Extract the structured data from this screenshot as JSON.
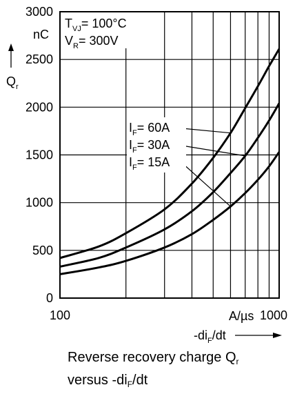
{
  "chart_data": {
    "type": "line",
    "xscale": "log",
    "xlim": [
      100,
      1000
    ],
    "ylim": [
      0,
      3000
    ],
    "grid": true,
    "x": [
      100,
      150,
      200,
      300,
      400,
      500,
      600,
      700,
      800,
      900,
      1000
    ],
    "series": [
      {
        "name": "I_F= 60A",
        "label_main": "I",
        "label_sub": "F",
        "label_rest": "= 60A",
        "values": [
          420,
          540,
          680,
          930,
          1200,
          1470,
          1730,
          1990,
          2220,
          2430,
          2610
        ]
      },
      {
        "name": "I_F= 30A",
        "label_main": "I",
        "label_sub": "F",
        "label_rest": "= 30A",
        "values": [
          330,
          420,
          530,
          720,
          910,
          1110,
          1310,
          1490,
          1680,
          1860,
          2040
        ]
      },
      {
        "name": "I_F= 15A",
        "label_main": "I",
        "label_sub": "F",
        "label_rest": "= 15A",
        "values": [
          250,
          320,
          390,
          530,
          670,
          820,
          960,
          1100,
          1240,
          1380,
          1530
        ]
      }
    ],
    "y_ticks": [
      "3000",
      "2500",
      "2000",
      "1500",
      "1000",
      "500",
      "0"
    ],
    "x_ticks": [
      "100",
      "1000"
    ],
    "ylabel": {
      "main": "Q",
      "sub": "r",
      "unit": "nC"
    },
    "xlabel": {
      "unit": "A/µs",
      "main_pre": "-di",
      "sub": "F",
      "main_post": "/dt"
    },
    "conditions": [
      {
        "main": "T",
        "sub": "VJ",
        "rest": "= 100°C"
      },
      {
        "main": "V",
        "sub": "R",
        "rest": "= 300V"
      }
    ]
  },
  "caption": {
    "line1_main": "Reverse recovery charge Q",
    "line1_sub": "r",
    "line2_pre": "versus -di",
    "line2_sub": "F",
    "line2_post": "/dt"
  }
}
